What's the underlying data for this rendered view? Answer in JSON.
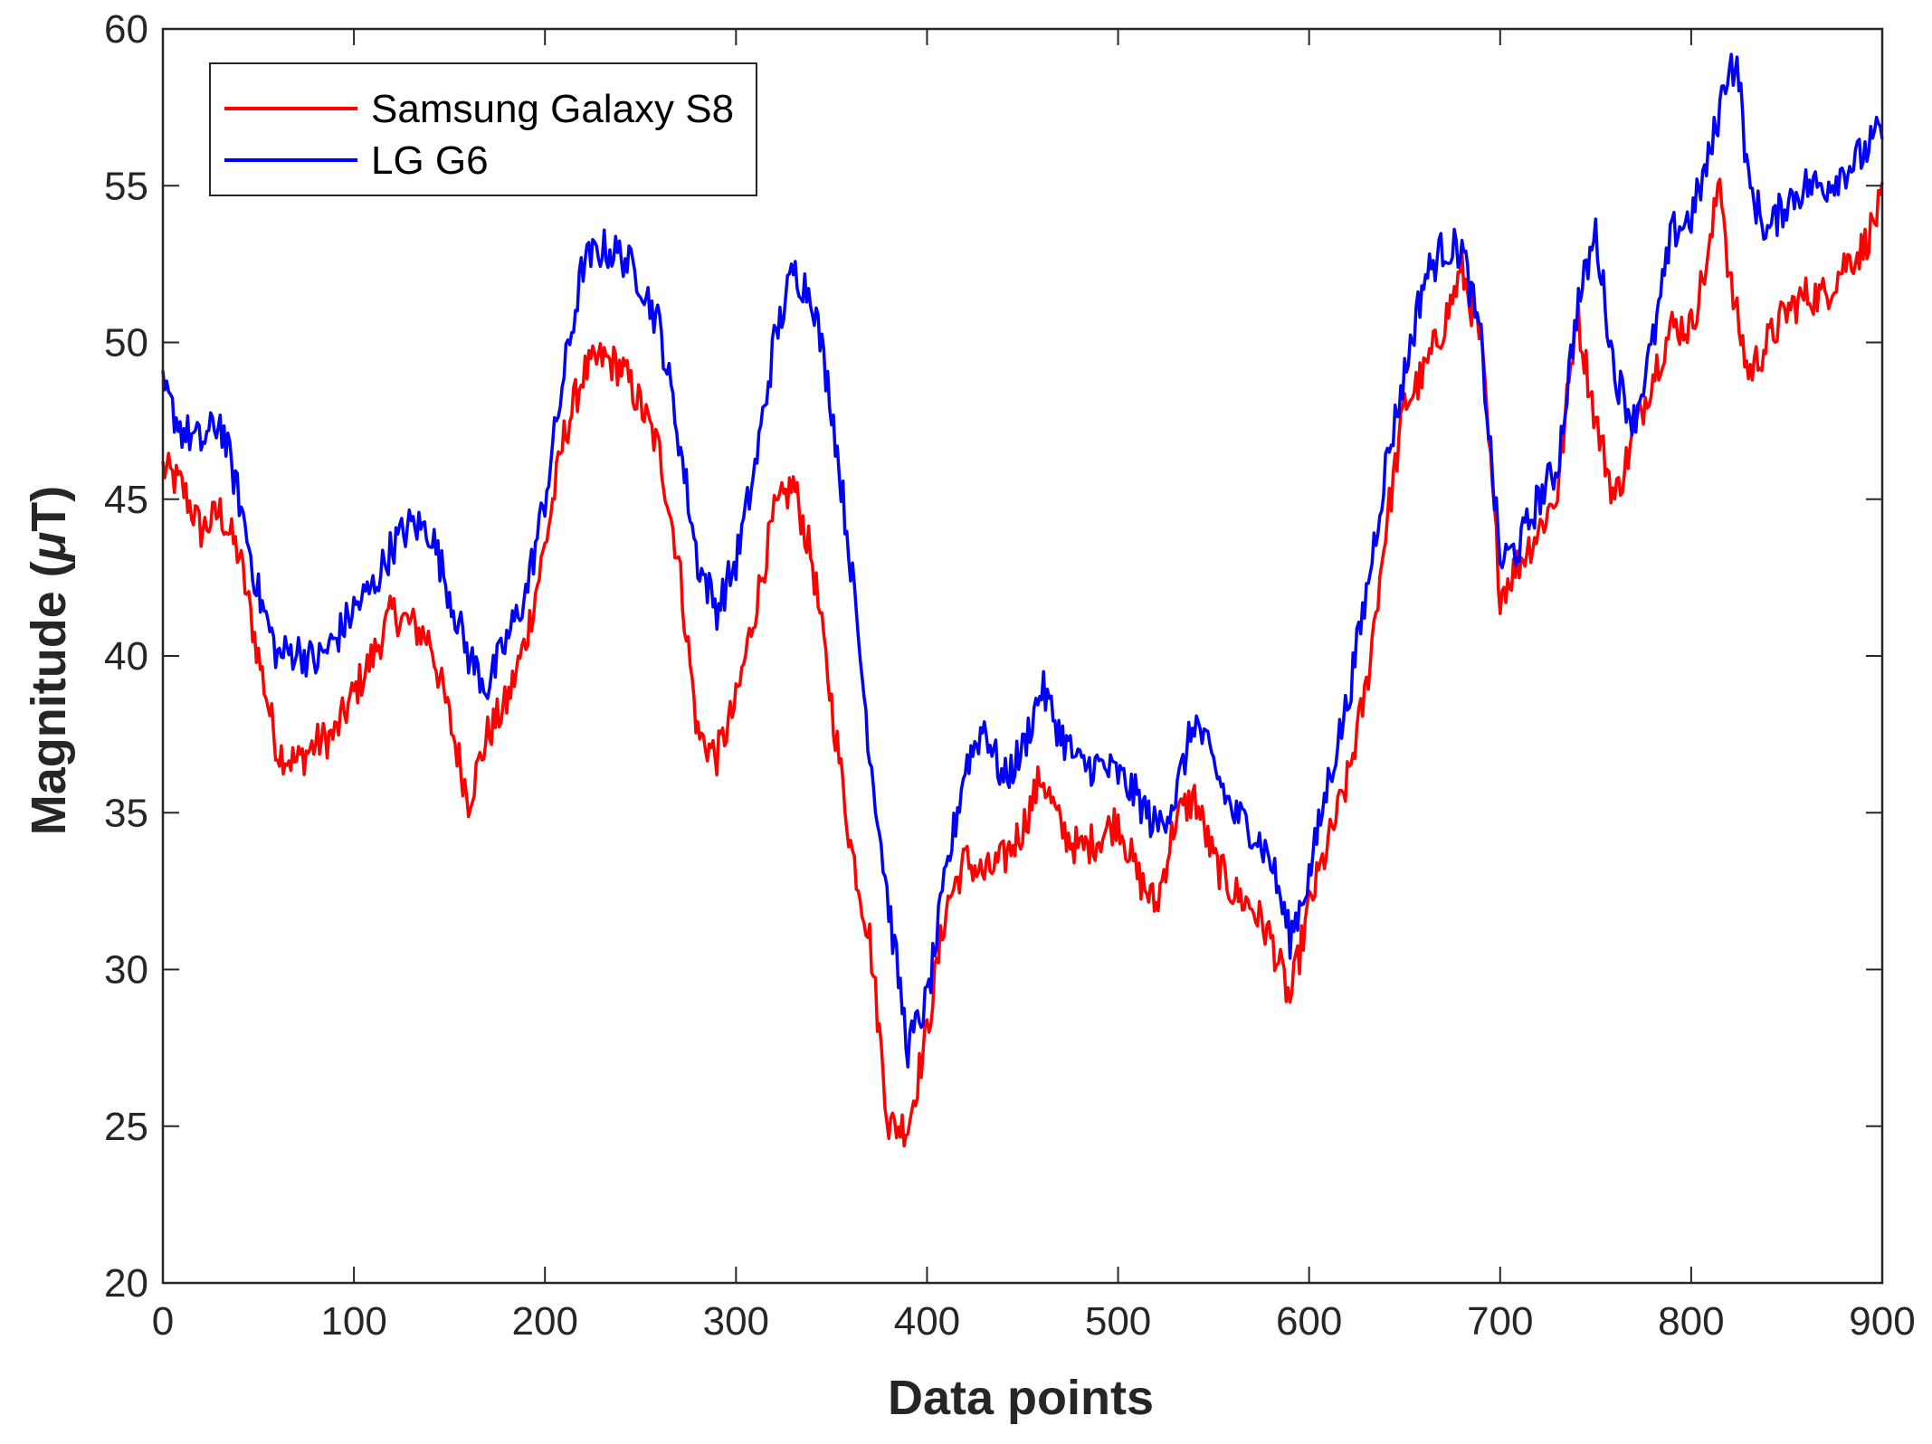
{
  "chart_data": {
    "type": "line",
    "title": "",
    "xlabel": "Data points",
    "ylabel_prefix": "Magnitude (",
    "ylabel_symbol": "μ",
    "ylabel_suffix": "T)",
    "xlim": [
      0,
      900
    ],
    "ylim": [
      20,
      60
    ],
    "xticks": [
      0,
      100,
      200,
      300,
      400,
      500,
      600,
      700,
      800,
      900
    ],
    "yticks": [
      20,
      25,
      30,
      35,
      40,
      45,
      50,
      55,
      60
    ],
    "grid": false,
    "legend_position": "top-left",
    "series": [
      {
        "name": "Samsung Galaxy S8",
        "color": "#ff0000",
        "points": [
          [
            0,
            46
          ],
          [
            10,
            45.4
          ],
          [
            20,
            44
          ],
          [
            30,
            44.6
          ],
          [
            40,
            43.2
          ],
          [
            50,
            40
          ],
          [
            60,
            37
          ],
          [
            70,
            36.6
          ],
          [
            80,
            37.2
          ],
          [
            90,
            37.5
          ],
          [
            100,
            38.8
          ],
          [
            110,
            40
          ],
          [
            120,
            41.4
          ],
          [
            130,
            41
          ],
          [
            140,
            40.5
          ],
          [
            150,
            38
          ],
          [
            160,
            35.4
          ],
          [
            170,
            37.5
          ],
          [
            180,
            38.5
          ],
          [
            190,
            40.5
          ],
          [
            200,
            43.5
          ],
          [
            210,
            47
          ],
          [
            220,
            49
          ],
          [
            230,
            49.5
          ],
          [
            240,
            49.2
          ],
          [
            250,
            48
          ],
          [
            260,
            46.5
          ],
          [
            270,
            43
          ],
          [
            280,
            37.5
          ],
          [
            290,
            36.8
          ],
          [
            300,
            38.5
          ],
          [
            310,
            41.5
          ],
          [
            320,
            44.5
          ],
          [
            330,
            45.5
          ],
          [
            340,
            43
          ],
          [
            350,
            38.5
          ],
          [
            360,
            34
          ],
          [
            370,
            31
          ],
          [
            380,
            25
          ],
          [
            390,
            25
          ],
          [
            400,
            28
          ],
          [
            410,
            32
          ],
          [
            420,
            33.5
          ],
          [
            430,
            33
          ],
          [
            440,
            33.5
          ],
          [
            450,
            34.5
          ],
          [
            460,
            36.2
          ],
          [
            470,
            34.5
          ],
          [
            480,
            33.8
          ],
          [
            490,
            34.2
          ],
          [
            500,
            34.8
          ],
          [
            510,
            33
          ],
          [
            520,
            32
          ],
          [
            530,
            34.8
          ],
          [
            540,
            35.5
          ],
          [
            550,
            33.5
          ],
          [
            560,
            32.5
          ],
          [
            570,
            32
          ],
          [
            580,
            31
          ],
          [
            590,
            29
          ],
          [
            600,
            32
          ],
          [
            610,
            34
          ],
          [
            620,
            36
          ],
          [
            630,
            39
          ],
          [
            640,
            44
          ],
          [
            650,
            48
          ],
          [
            660,
            49
          ],
          [
            670,
            50.5
          ],
          [
            680,
            52.3
          ],
          [
            690,
            50
          ],
          [
            700,
            42
          ],
          [
            710,
            43
          ],
          [
            720,
            44
          ],
          [
            730,
            45.2
          ],
          [
            740,
            51
          ],
          [
            750,
            47.5
          ],
          [
            760,
            45
          ],
          [
            770,
            47
          ],
          [
            780,
            49
          ],
          [
            790,
            50.5
          ],
          [
            800,
            50.5
          ],
          [
            810,
            53
          ],
          [
            815,
            55.5
          ],
          [
            820,
            52
          ],
          [
            830,
            49
          ],
          [
            840,
            50
          ],
          [
            850,
            51
          ],
          [
            860,
            51.5
          ],
          [
            870,
            51.5
          ],
          [
            880,
            52.5
          ],
          [
            890,
            53
          ],
          [
            900,
            54.5
          ]
        ]
      },
      {
        "name": "LG G6",
        "color": "#0000ff",
        "points": [
          [
            0,
            48.5
          ],
          [
            10,
            47.2
          ],
          [
            20,
            46.8
          ],
          [
            30,
            47.5
          ],
          [
            40,
            45
          ],
          [
            50,
            42
          ],
          [
            60,
            40
          ],
          [
            70,
            40.2
          ],
          [
            80,
            39.8
          ],
          [
            90,
            40.5
          ],
          [
            100,
            41.5
          ],
          [
            110,
            42.2
          ],
          [
            120,
            43.5
          ],
          [
            130,
            44.2
          ],
          [
            140,
            44
          ],
          [
            150,
            42
          ],
          [
            160,
            40
          ],
          [
            170,
            39
          ],
          [
            180,
            40.5
          ],
          [
            190,
            42
          ],
          [
            200,
            45
          ],
          [
            210,
            49
          ],
          [
            220,
            52.5
          ],
          [
            230,
            53
          ],
          [
            240,
            52.8
          ],
          [
            250,
            52
          ],
          [
            260,
            50.5
          ],
          [
            270,
            47
          ],
          [
            280,
            43
          ],
          [
            290,
            41.5
          ],
          [
            300,
            43
          ],
          [
            310,
            46
          ],
          [
            320,
            50
          ],
          [
            330,
            52.3
          ],
          [
            340,
            51.5
          ],
          [
            350,
            48
          ],
          [
            360,
            43
          ],
          [
            370,
            37
          ],
          [
            380,
            32
          ],
          [
            390,
            27.5
          ],
          [
            400,
            29
          ],
          [
            410,
            33
          ],
          [
            420,
            36.5
          ],
          [
            430,
            37.8
          ],
          [
            440,
            36
          ],
          [
            450,
            37
          ],
          [
            460,
            39
          ],
          [
            470,
            37.5
          ],
          [
            480,
            36.5
          ],
          [
            490,
            36.5
          ],
          [
            500,
            36.2
          ],
          [
            510,
            35.5
          ],
          [
            520,
            34.5
          ],
          [
            530,
            35.5
          ],
          [
            540,
            38
          ],
          [
            550,
            36.5
          ],
          [
            560,
            35
          ],
          [
            570,
            34.5
          ],
          [
            580,
            33.5
          ],
          [
            590,
            31
          ],
          [
            600,
            33
          ],
          [
            610,
            36
          ],
          [
            620,
            38.5
          ],
          [
            630,
            42
          ],
          [
            640,
            46
          ],
          [
            650,
            49
          ],
          [
            660,
            52
          ],
          [
            670,
            53
          ],
          [
            680,
            53
          ],
          [
            690,
            50
          ],
          [
            700,
            43
          ],
          [
            710,
            43.5
          ],
          [
            720,
            45
          ],
          [
            730,
            46
          ],
          [
            740,
            51
          ],
          [
            750,
            53.5
          ],
          [
            760,
            49
          ],
          [
            770,
            47.5
          ],
          [
            780,
            50
          ],
          [
            790,
            53.5
          ],
          [
            800,
            54
          ],
          [
            810,
            56
          ],
          [
            815,
            57.5
          ],
          [
            820,
            59
          ],
          [
            825,
            58.5
          ],
          [
            830,
            55
          ],
          [
            840,
            53.5
          ],
          [
            850,
            54.5
          ],
          [
            860,
            55
          ],
          [
            870,
            55
          ],
          [
            880,
            55.5
          ],
          [
            890,
            56
          ],
          [
            900,
            56.8
          ]
        ]
      }
    ]
  }
}
